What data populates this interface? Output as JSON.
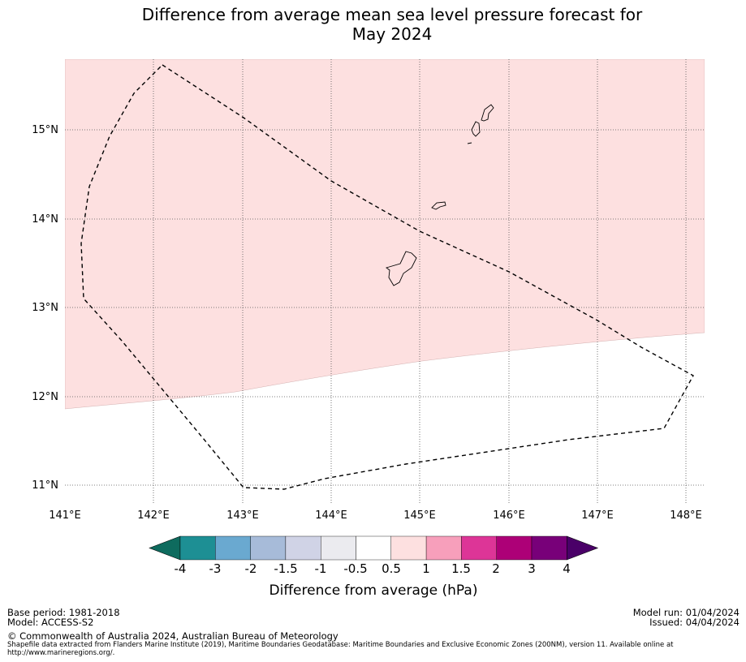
{
  "title": {
    "line1": "Difference from average mean sea level pressure forecast for",
    "line2": "May 2024"
  },
  "map": {
    "lat_ticks": [
      "15°N",
      "14°N",
      "13°N",
      "12°N",
      "11°N"
    ],
    "lon_ticks": [
      "141°E",
      "142°E",
      "143°E",
      "144°E",
      "145°E",
      "146°E",
      "147°E",
      "148°E"
    ],
    "colors": {
      "positive_0_5_to_1": "#fde0e0",
      "neutral": "#ffffff",
      "boundary": "#000000"
    }
  },
  "legend": {
    "title": "Difference from average (hPa)",
    "ticks": [
      "-4",
      "-3",
      "-2",
      "-1.5",
      "-1",
      "-0.5",
      "0.5",
      "1",
      "1.5",
      "2",
      "3",
      "4"
    ],
    "colors": [
      "#0e6b5e",
      "#1d8f94",
      "#6aa9d0",
      "#a7bbd9",
      "#d0d3e6",
      "#ebebef",
      "#ffffff",
      "#fde0e0",
      "#f79fbb",
      "#dd3597",
      "#ad0077",
      "#780079",
      "#4a0068"
    ]
  },
  "footer": {
    "base_period": "Base period: 1981-2018",
    "model": "Model: ACCESS-S2",
    "model_run": "Model run: 01/04/2024",
    "issued": "Issued: 04/04/2024",
    "copyright": "© Commonwealth of Australia 2024, Australian Bureau of Meteorology",
    "shapefile_note": "Shapefile data extracted from Flanders Marine Institute (2019), Maritime Boundaries Geodatabase: Maritime Boundaries and Exclusive Economic Zones (200NM), version 11. Available online at http://www.marineregions.org/."
  }
}
